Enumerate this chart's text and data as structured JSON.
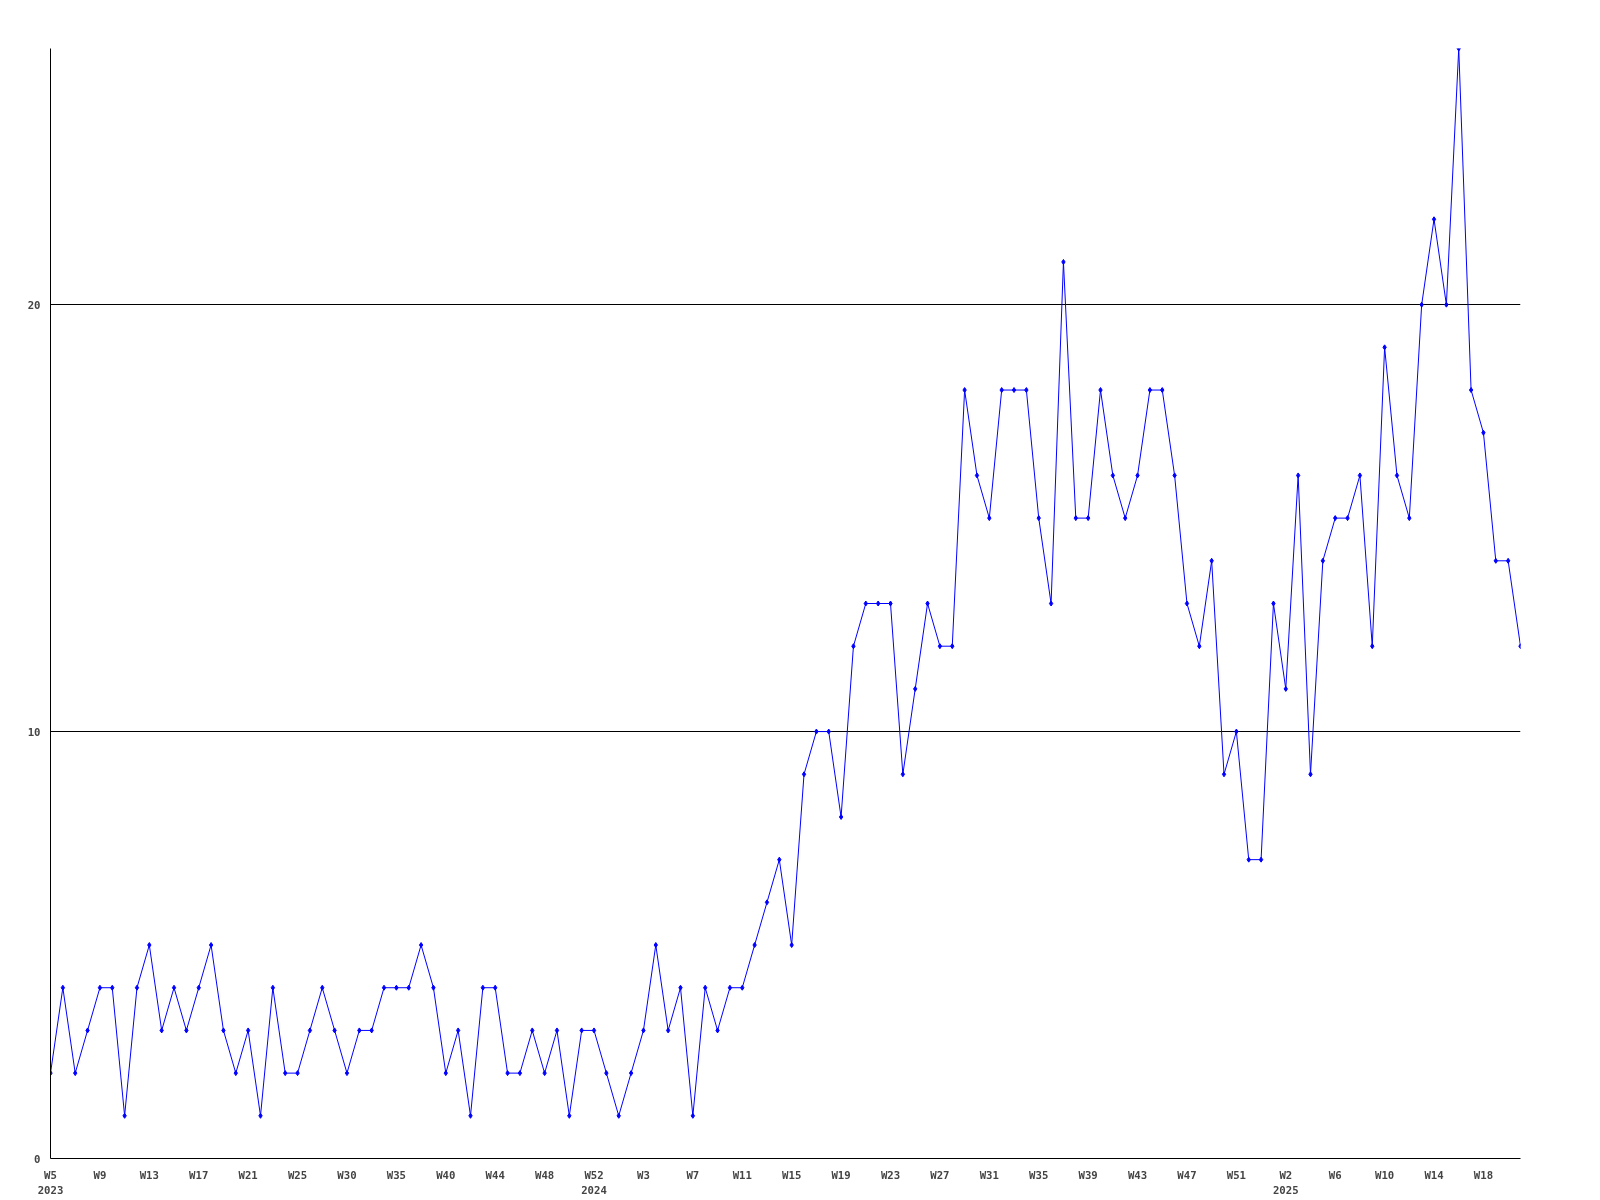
{
  "chart_data": {
    "type": "line",
    "categories": [
      "W5\n2023",
      null,
      null,
      null,
      "W9",
      null,
      null,
      null,
      "W13",
      null,
      null,
      null,
      "W17",
      null,
      null,
      null,
      "W21",
      null,
      null,
      null,
      "W25",
      null,
      null,
      null,
      "W30",
      null,
      null,
      null,
      "W35",
      null,
      null,
      null,
      "W40",
      null,
      null,
      null,
      "W44",
      null,
      null,
      null,
      "W48",
      null,
      null,
      null,
      "W52\n2024",
      null,
      null,
      null,
      "W3",
      null,
      null,
      null,
      "W7",
      null,
      null,
      null,
      "W11",
      null,
      null,
      null,
      "W15",
      null,
      null,
      null,
      "W19",
      null,
      null,
      null,
      "W23",
      null,
      null,
      null,
      "W27",
      null,
      null,
      null,
      "W31",
      null,
      null,
      null,
      "W35",
      null,
      null,
      null,
      "W39",
      null,
      null,
      null,
      "W43",
      null,
      null,
      null,
      "W47",
      null,
      null,
      null,
      "W51",
      null,
      null,
      null,
      "W2\n2025",
      null,
      null,
      null,
      "W6",
      null,
      null,
      null,
      "W10",
      null,
      null,
      null,
      "W14",
      null,
      null,
      null,
      "W18",
      null,
      null,
      null
    ],
    "series": [
      {
        "color": "#0000ff",
        "values": [
          2,
          4,
          2,
          3,
          4,
          4,
          1,
          4,
          5,
          3,
          4,
          3,
          4,
          5,
          3,
          2,
          3,
          1,
          4,
          2,
          2,
          3,
          4,
          3,
          2,
          3,
          3,
          4,
          4,
          4,
          5,
          4,
          2,
          3,
          1,
          4,
          4,
          2,
          2,
          3,
          2,
          3,
          1,
          3,
          3,
          2,
          1,
          2,
          3,
          5,
          3,
          4,
          1,
          4,
          3,
          4,
          4,
          5,
          6,
          7,
          5,
          9,
          10,
          10,
          8,
          12,
          13,
          13,
          13,
          9,
          11,
          13,
          12,
          12,
          18,
          16,
          15,
          18,
          18,
          18,
          15,
          13,
          21,
          15,
          15,
          18,
          16,
          15,
          16,
          18,
          18,
          16,
          13,
          12,
          14,
          9,
          10,
          7,
          7,
          13,
          11,
          16,
          9,
          14,
          15,
          15,
          16,
          12,
          19,
          16,
          15,
          20,
          22,
          20,
          26,
          18,
          17,
          14,
          14,
          12
        ]
      }
    ],
    "ylim": [
      0,
      26
    ],
    "yticks": [
      0,
      10,
      20
    ],
    "grid": "y",
    "marker": "diamond",
    "line_style": "solid"
  }
}
